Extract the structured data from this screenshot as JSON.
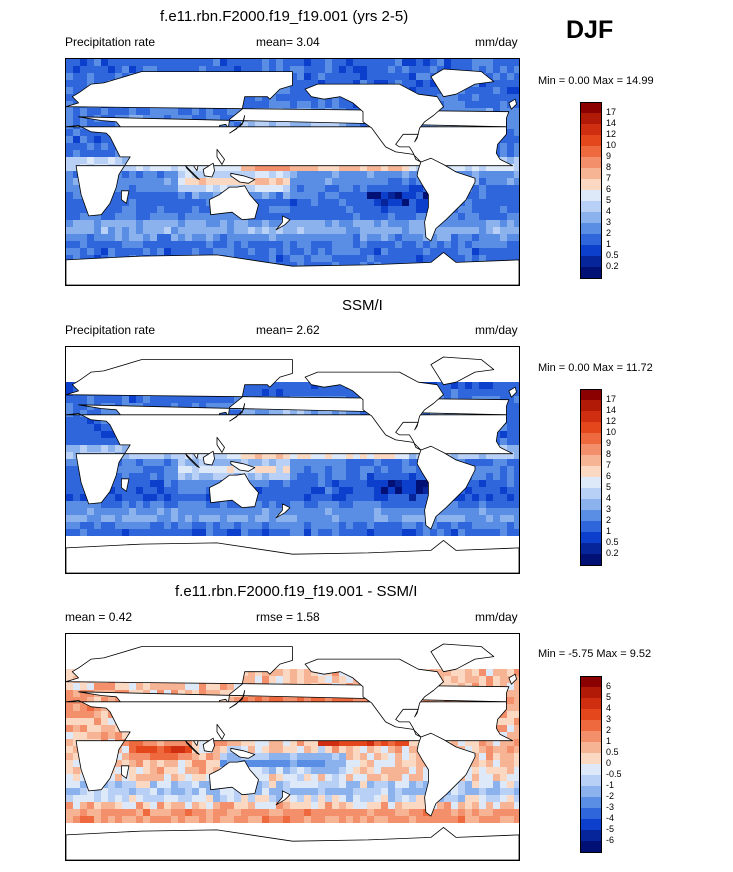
{
  "season": "DJF",
  "panels": [
    {
      "title": "f.e11.rbn.F2000.f19_f19.001 (yrs 2-5)",
      "left_label": "Precipitation rate",
      "mid_label": "mean=   3.04",
      "right_label": "mm/day",
      "minmax": "Min =   0.00 Max =  14.99",
      "kind": "abs"
    },
    {
      "title": "SSM/I",
      "left_label": "Precipitation rate",
      "mid_label": "mean=   2.62",
      "right_label": "mm/day",
      "minmax": "Min =   0.00 Max =  11.72",
      "kind": "abs"
    },
    {
      "title": "f.e11.rbn.F2000.f19_f19.001 - SSM/I",
      "left_label": "mean =   0.42",
      "mid_label": "rmse =   1.58",
      "right_label": "mm/day",
      "minmax": "Min =  -5.75 Max =   9.52",
      "kind": "diff"
    }
  ],
  "chart_data": [
    {
      "type": "heatmap",
      "title": "f.e11.rbn.F2000.f19_f19.001 (yrs 2-5)",
      "variable": "Precipitation rate",
      "units": "mm/day",
      "mean": 3.04,
      "min": 0.0,
      "max": 14.99,
      "colorbar_levels": [
        "17",
        "14",
        "12",
        "10",
        "9",
        "8",
        "7",
        "6",
        "5",
        "4",
        "3",
        "2",
        "1",
        "0.5",
        "0.2"
      ],
      "colorbar_colors": [
        "#8b0000",
        "#b01a06",
        "#d02e10",
        "#e4471c",
        "#ee6a3e",
        "#f3906b",
        "#f7b494",
        "#fbd8c1",
        "#dde9f9",
        "#b8d0f5",
        "#8cb2ee",
        "#5a8de4",
        "#2f66dc",
        "#0b3fcc",
        "#06259a",
        "#001075"
      ]
    },
    {
      "type": "heatmap",
      "title": "SSM/I",
      "variable": "Precipitation rate",
      "units": "mm/day",
      "mean": 2.62,
      "min": 0.0,
      "max": 11.72,
      "colorbar_levels": [
        "17",
        "14",
        "12",
        "10",
        "9",
        "8",
        "7",
        "6",
        "5",
        "4",
        "3",
        "2",
        "1",
        "0.5",
        "0.2"
      ],
      "colorbar_colors": [
        "#8b0000",
        "#b01a06",
        "#d02e10",
        "#e4471c",
        "#ee6a3e",
        "#f3906b",
        "#f7b494",
        "#fbd8c1",
        "#dde9f9",
        "#b8d0f5",
        "#8cb2ee",
        "#5a8de4",
        "#2f66dc",
        "#0b3fcc",
        "#06259a",
        "#001075"
      ]
    },
    {
      "type": "heatmap",
      "title": "f.e11.rbn.F2000.f19_f19.001 - SSM/I",
      "units": "mm/day",
      "mean": 0.42,
      "rmse": 1.58,
      "min": -5.75,
      "max": 9.52,
      "colorbar_levels": [
        "6",
        "5",
        "4",
        "3",
        "2",
        "1",
        "0.5",
        "0",
        "-0.5",
        "-1",
        "-2",
        "-3",
        "-4",
        "-5",
        "-6"
      ],
      "colorbar_colors": [
        "#8b0000",
        "#b01a06",
        "#d02e10",
        "#e4471c",
        "#ee6a3e",
        "#f3906b",
        "#f7b494",
        "#fbd8c1",
        "#dde9f9",
        "#b8d0f5",
        "#8cb2ee",
        "#5a8de4",
        "#2f66dc",
        "#0b3fcc",
        "#06259a",
        "#001075"
      ]
    }
  ]
}
